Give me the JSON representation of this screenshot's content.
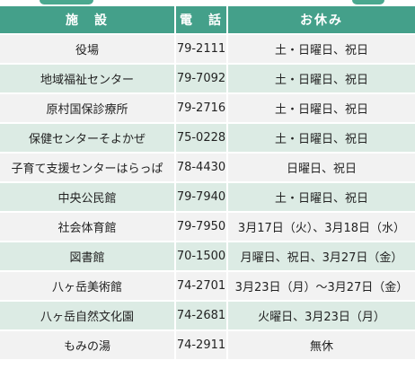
{
  "header": {
    "facility": "施　設",
    "phone": "電　話",
    "holiday": "お休み"
  },
  "rows": [
    {
      "facility": "役場",
      "phone": "79-2111",
      "holiday": "土・日曜日、祝日"
    },
    {
      "facility": "地域福祉センター",
      "phone": "79-7092",
      "holiday": "土・日曜日、祝日"
    },
    {
      "facility": "原村国保診療所",
      "phone": "79-2716",
      "holiday": "土・日曜日、祝日"
    },
    {
      "facility": "保健センターそよかぜ",
      "phone": "75-0228",
      "holiday": "土・日曜日、祝日"
    },
    {
      "facility": "子育て支援センターはらっぱ",
      "phone": "78-4430",
      "holiday": "日曜日、祝日"
    },
    {
      "facility": "中央公民館",
      "phone": "79-7940",
      "holiday": "土・日曜日、祝日"
    },
    {
      "facility": "社会体育館",
      "phone": "79-7950",
      "holiday": "3月17日（火）、3月18日（水）"
    },
    {
      "facility": "図書館",
      "phone": "70-1500",
      "holiday": "月曜日、祝日、3月27日（金）"
    },
    {
      "facility": "八ヶ岳美術館",
      "phone": "74-2701",
      "holiday": "3月23日（月）～3月27日（金）"
    },
    {
      "facility": "八ヶ岳自然文化園",
      "phone": "74-2681",
      "holiday": "火曜日、3月23日（月）"
    },
    {
      "facility": "もみの湯",
      "phone": "74-2911",
      "holiday": "無休"
    }
  ],
  "colors": {
    "header_bg": "#44a08a",
    "row_odd": "#f2f2f2",
    "row_even": "#dcebe4"
  }
}
